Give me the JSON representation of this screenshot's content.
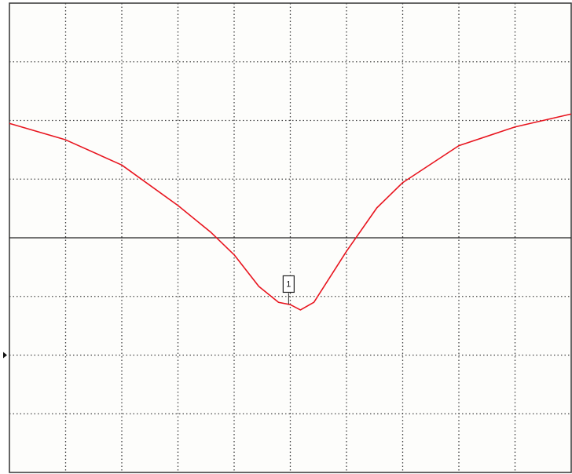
{
  "chart_data": {
    "type": "line",
    "x": [
      0,
      1,
      2,
      3,
      3.59,
      4,
      4.44,
      4.79,
      5,
      5.18,
      5.42,
      6,
      6.54,
      7,
      8,
      9,
      10
    ],
    "series": [
      {
        "color": "#e8141e",
        "values": [
          5.95,
          5.67,
          5.24,
          4.55,
          4.09,
          3.71,
          3.17,
          2.9,
          2.86,
          2.77,
          2.9,
          3.77,
          4.51,
          4.94,
          5.57,
          5.89,
          6.11
        ]
      }
    ],
    "xlim": [
      0,
      10
    ],
    "ylim": [
      0,
      8
    ],
    "xticks": [
      1,
      2,
      3,
      4,
      5,
      6,
      7,
      8,
      9
    ],
    "yticks": [
      1,
      2,
      3,
      5,
      6,
      7
    ],
    "grid": true,
    "reference_level": 4,
    "reference_marker": 2,
    "marker": {
      "label": "1",
      "x": 4.97,
      "y": 2.87
    }
  }
}
